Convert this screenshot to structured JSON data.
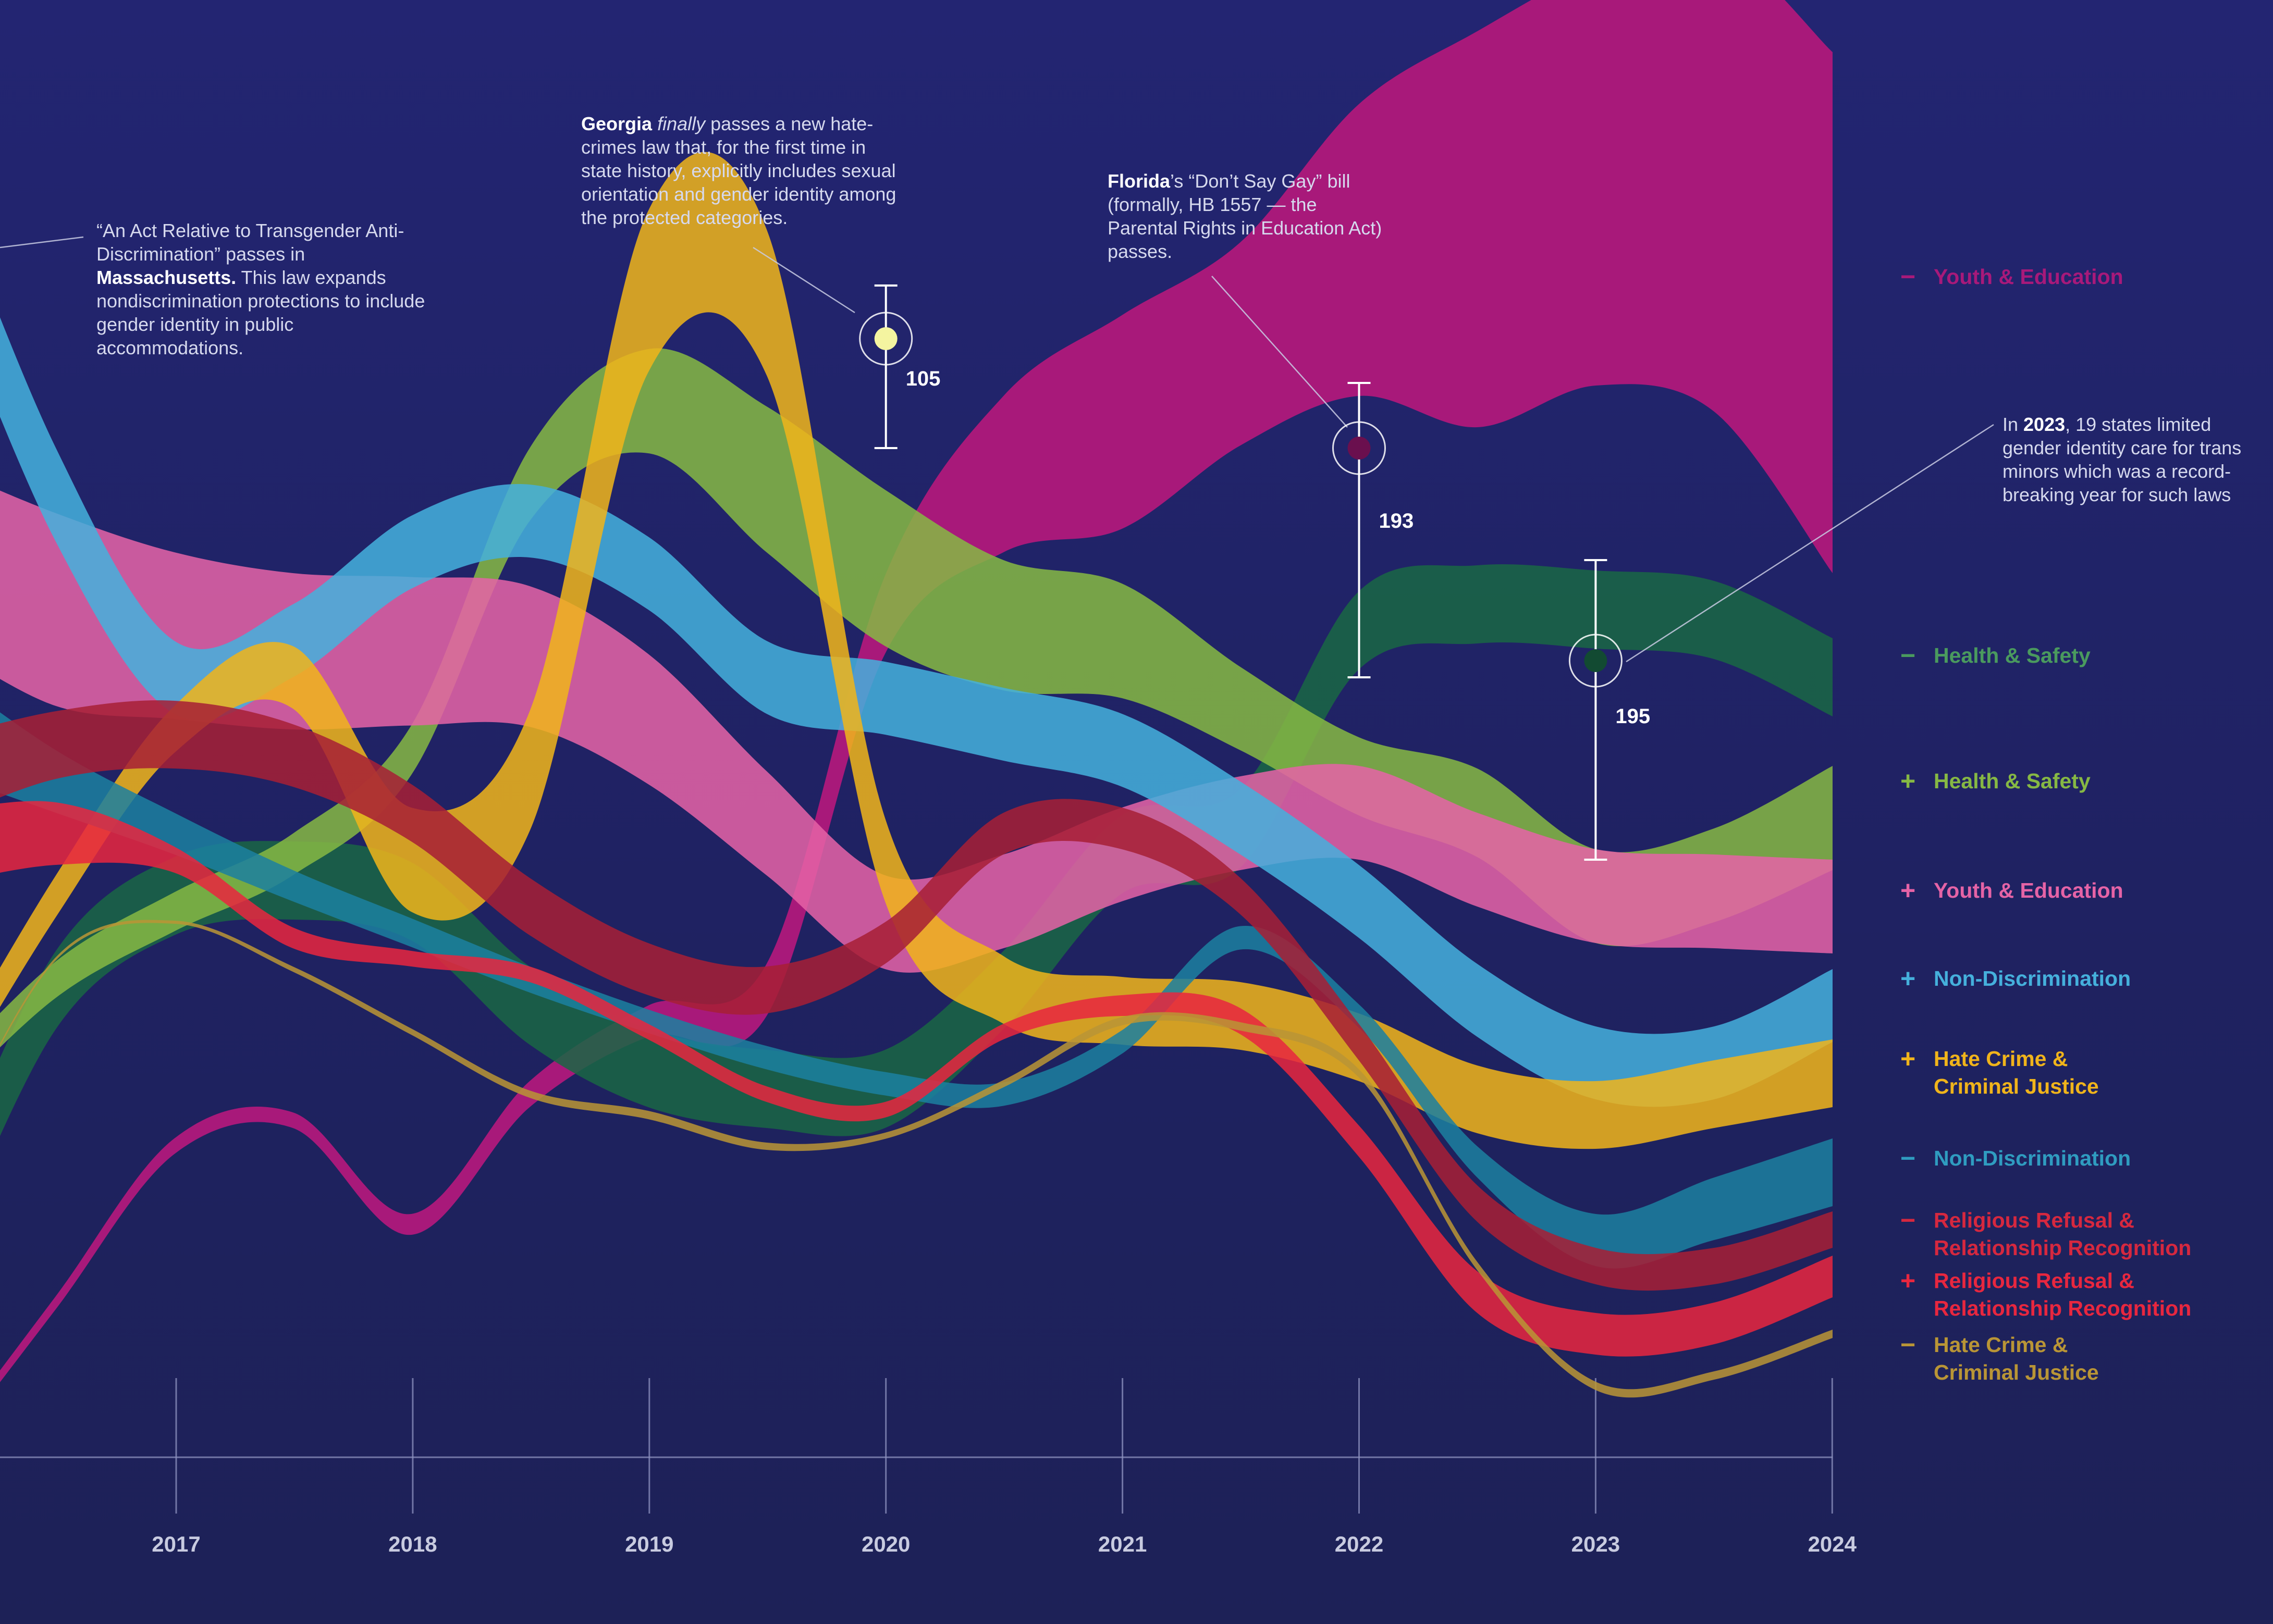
{
  "chart_data": {
    "type": "area",
    "x": [
      "2016",
      "2016.5",
      "2017",
      "2017.5",
      "2018",
      "2018.5",
      "2019",
      "2019.5",
      "2020",
      "2020.5",
      "2021",
      "2021.5",
      "2022",
      "2022.5",
      "2023",
      "2023.5",
      "2024"
    ],
    "x_tick_labels": [
      "2017",
      "2018",
      "2019",
      "2020",
      "2021",
      "2022",
      "2023",
      "2024"
    ],
    "series": [
      {
        "name": "Youth & Education",
        "sign": "−",
        "color": "#a8197a",
        "center": [
          2800,
          2500,
          2200,
          2150,
          2350,
          2100,
          1960,
          1900,
          1180,
          910,
          810,
          660,
          480,
          440,
          340,
          340,
          600
        ],
        "thickness": [
          20,
          25,
          30,
          30,
          40,
          50,
          60,
          100,
          150,
          300,
          410,
          390,
          560,
          760,
          800,
          900,
          1000
        ]
      },
      {
        "name": "Health & Safety",
        "sign": "−",
        "color": "#1a6645",
        "center": [
          2380,
          1900,
          1720,
          1690,
          1730,
          1930,
          2050,
          2090,
          2090,
          1900,
          1640,
          1590,
          1210,
          1160,
          1170,
          1190,
          1300
        ]
      },
      {
        "name": "Health & Safety",
        "sign": "+",
        "color": "#86b844",
        "center": [
          2100,
          1880,
          1750,
          1640,
          1440,
          930,
          770,
          920,
          1090,
          1200,
          1230,
          1360,
          1490,
          1560,
          1720,
          1680,
          1570
        ],
        "thickness": [
          60,
          70,
          75,
          80,
          95,
          140,
          200,
          280,
          300,
          250,
          220,
          160,
          150,
          170,
          180,
          180,
          200
        ]
      },
      {
        "name": "Youth & Education",
        "sign": "+",
        "color": "#e563a6",
        "center": [
          1060,
          1170,
          1220,
          1250,
          1250,
          1260,
          1380,
          1580,
          1770,
          1730,
          1640,
          1580,
          1560,
          1650,
          1720,
          1730,
          1740
        ],
        "thickness": [
          340,
          370,
          320,
          300,
          285,
          270,
          250,
          200,
          180,
          180,
          180,
          180,
          180,
          180,
          180,
          180,
          180
        ]
      },
      {
        "name": "Non-Discrimination",
        "sign": "+",
        "color": "#45b0dc",
        "center": [
          400,
          950,
          1300,
          1230,
          1060,
          1000,
          1100,
          1300,
          1340,
          1390,
          1440,
          1570,
          1730,
          1920,
          2040,
          2040,
          1930
        ],
        "thickness": [
          200,
          180,
          140,
          140,
          140,
          140,
          140,
          140,
          140,
          140,
          140,
          140,
          140,
          140,
          140,
          140,
          140
        ]
      },
      {
        "name": "Hate Crime & Criminal Justice",
        "sign": "+",
        "color": "#f0b41b",
        "center": [
          2100,
          1720,
          1400,
          1300,
          1650,
          1480,
          560,
          580,
          1650,
          1900,
          1940,
          1950,
          2010,
          2110,
          2140,
          2100,
          2060
        ],
        "thickness": [
          70,
          80,
          90,
          120,
          200,
          230,
          310,
          280,
          160,
          130,
          130,
          130,
          130,
          130,
          130,
          130,
          130
        ]
      },
      {
        "name": "Non-Discrimination",
        "sign": "−",
        "color": "#1c80a0",
        "center": [
          1380,
          1500,
          1600,
          1700,
          1790,
          1880,
          1960,
          2030,
          2080,
          2100,
          2000,
          1800,
          1950,
          2230,
          2380,
          2320,
          2250
        ],
        "thickness": [
          200,
          120,
          80,
          60,
          55,
          50,
          45,
          45,
          45,
          45,
          45,
          45,
          45,
          60,
          100,
          120,
          130
        ]
      },
      {
        "name": "Religious Refusal & Relationship Recognition",
        "sign": "−",
        "color": "#a61f36",
        "center": [
          1500,
          1430,
          1410,
          1450,
          1560,
          1740,
          1860,
          1900,
          1810,
          1600,
          1590,
          1720,
          2000,
          2310,
          2430,
          2430,
          2360
        ],
        "thickness": [
          160,
          130,
          130,
          120,
          110,
          110,
          100,
          90,
          80,
          80,
          80,
          70,
          70,
          70,
          70,
          70,
          70
        ]
      },
      {
        "name": "Religious Refusal & Relationship Recognition",
        "sign": "+",
        "color": "#e8273f",
        "center": [
          1630,
          1600,
          1650,
          1800,
          1840,
          1870,
          1980,
          2100,
          2130,
          1980,
          1930,
          1960,
          2190,
          2480,
          2560,
          2540,
          2450
        ],
        "thickness": [
          140,
          120,
          50,
          40,
          30,
          30,
          30,
          30,
          30,
          30,
          40,
          50,
          60,
          80,
          80,
          80,
          80
        ]
      },
      {
        "name": "Hate Crime & Criminal Justice",
        "sign": "−",
        "color": "#b99536",
        "center": [
          2240,
          1840,
          1770,
          1860,
          1980,
          2100,
          2140,
          2200,
          2180,
          2080,
          1960,
          1970,
          2060,
          2430,
          2660,
          2640,
          2560
        ],
        "thickness": [
          4,
          6,
          6,
          10,
          12,
          14,
          16,
          14,
          12,
          14,
          16,
          16,
          16,
          16,
          16,
          16,
          16
        ]
      }
    ],
    "annotations": [
      {
        "key": "ma",
        "html": "“An Act Relative to Transgender Anti-Discrimination” passes in <b>Massachusetts.</b> This law expands nondiscrimination protections to include gender identity in public accommodations."
      },
      {
        "key": "ga",
        "html": "<b>Georgia</b> <i>finally</i> passes a new hate-crimes law that, for the first time in state history, explicitly includes sexual orientation and gender identity among the protected categories."
      },
      {
        "key": "fl",
        "html": "<b>Florida</b>’s “Don’t Say Gay” bill (formally, HB 1557 — the Parental Rights in Education Act) passes."
      },
      {
        "key": "tr",
        "html": "In <b>2023</b>, 19 states limited gender identity care for trans minors which was a record-breaking year for such laws"
      }
    ],
    "peaks": [
      {
        "x": "2020",
        "value": "105",
        "color": "#f0b41b",
        "dot": "#f4f4a0"
      },
      {
        "x": "2022",
        "value": "193",
        "color": "#a8197a",
        "dot": "#6a0f4e"
      },
      {
        "x": "2023",
        "value": "195",
        "color": "#1a6645",
        "dot": "#124a32"
      }
    ]
  }
}
